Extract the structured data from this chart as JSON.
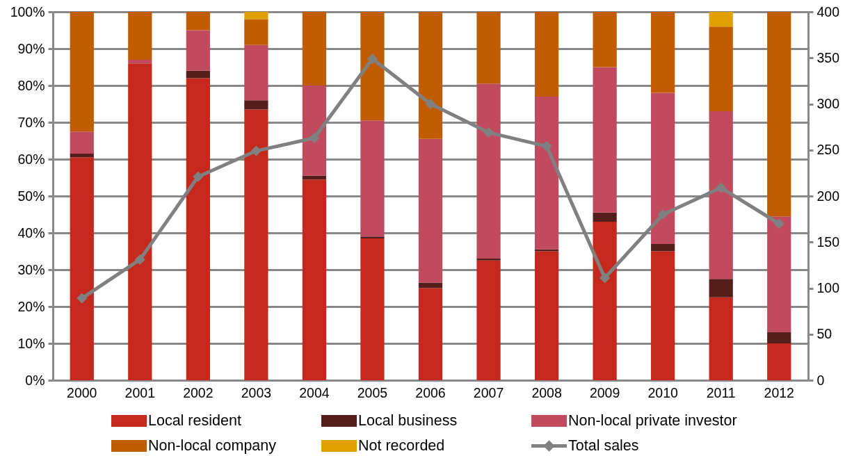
{
  "chart_data": {
    "type": "bar",
    "stacked": true,
    "categories": [
      "2000",
      "2001",
      "2002",
      "2003",
      "2004",
      "2005",
      "2006",
      "2007",
      "2008",
      "2009",
      "2010",
      "2011",
      "2012"
    ],
    "series": [
      {
        "name": "Local resident",
        "color": "#c5281c",
        "values": [
          60.5,
          86,
          82,
          73.5,
          54.5,
          38.5,
          25,
          32.5,
          35,
          43,
          35,
          22.5,
          10
        ]
      },
      {
        "name": "Local business",
        "color": "#561e1a",
        "values": [
          1,
          null,
          2,
          2.5,
          1,
          0.5,
          1.5,
          0.5,
          0.5,
          2.5,
          2,
          5,
          3
        ]
      },
      {
        "name": "Non-local private investor",
        "color": "#c24a5f",
        "values": [
          6,
          1,
          11,
          15,
          24.5,
          31.5,
          39,
          47.5,
          41.5,
          39.5,
          41,
          45.5,
          31.5
        ]
      },
      {
        "name": "Non-local company",
        "color": "#c15c00",
        "values": [
          32.5,
          13,
          5,
          7,
          20,
          29.5,
          34.5,
          19.5,
          23,
          15,
          22,
          23,
          55.5
        ]
      },
      {
        "name": "Not recorded",
        "color": "#e0a000",
        "values": [
          null,
          null,
          null,
          2,
          null,
          null,
          null,
          null,
          null,
          null,
          null,
          4,
          null
        ]
      },
      {
        "name": "Total sales",
        "type": "line",
        "axis": "y2",
        "color": "#808080",
        "values": [
          89,
          131,
          221,
          249,
          263,
          349,
          300,
          269,
          254,
          111,
          180,
          209,
          170
        ]
      }
    ],
    "ylim": [
      0,
      100
    ],
    "yticks": [
      {
        "value": 0,
        "label": "0%"
      },
      {
        "value": 10,
        "label": "10%"
      },
      {
        "value": 20,
        "label": "20%"
      },
      {
        "value": 30,
        "label": "30%"
      },
      {
        "value": 40,
        "label": "40%"
      },
      {
        "value": 50,
        "label": "50%"
      },
      {
        "value": 60,
        "label": "60%"
      },
      {
        "value": 70,
        "label": "70%"
      },
      {
        "value": 80,
        "label": "80%"
      },
      {
        "value": 90,
        "label": "90%"
      },
      {
        "value": 100,
        "label": "100%"
      }
    ],
    "y2lim": [
      0,
      400
    ],
    "y2ticks": [
      0,
      50,
      100,
      150,
      200,
      250,
      300,
      350,
      400
    ],
    "grid": "y",
    "legend": "bottom",
    "marker": "diamond",
    "line_style": "solid"
  }
}
